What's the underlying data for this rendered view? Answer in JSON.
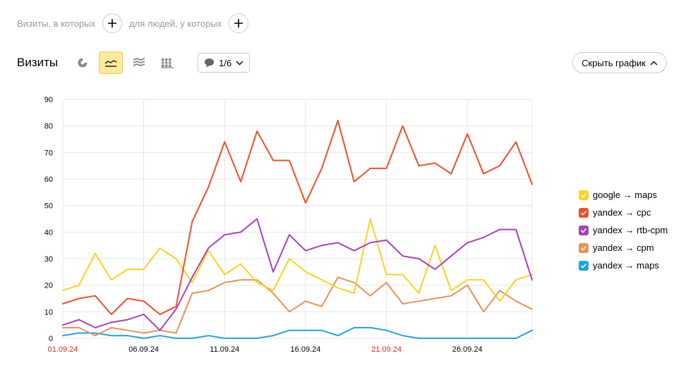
{
  "filters": {
    "visits_label": "Визиты, в которых",
    "people_label": "для людей, у которых"
  },
  "toolbar": {
    "title": "Визиты",
    "series_selector": "1/6",
    "hide_chart": "Скрыть график"
  },
  "colors": {
    "weekend_tick": "#e32b1c",
    "active_button": "#fde99a"
  },
  "chart_data": {
    "type": "line",
    "x": [
      "01.09.24",
      "02.09.24",
      "03.09.24",
      "04.09.24",
      "05.09.24",
      "06.09.24",
      "07.09.24",
      "08.09.24",
      "09.09.24",
      "10.09.24",
      "11.09.24",
      "12.09.24",
      "13.09.24",
      "14.09.24",
      "15.09.24",
      "16.09.24",
      "17.09.24",
      "18.09.24",
      "19.09.24",
      "20.09.24",
      "21.09.24",
      "22.09.24",
      "23.09.24",
      "24.09.24",
      "25.09.24",
      "26.09.24",
      "27.09.24",
      "28.09.24",
      "29.09.24",
      "30.09.24"
    ],
    "x_tick_labels": [
      {
        "label": "01.09.24",
        "index": 0,
        "weekend": true
      },
      {
        "label": "06.09.24",
        "index": 5,
        "weekend": false
      },
      {
        "label": "11.09.24",
        "index": 10,
        "weekend": false
      },
      {
        "label": "16.09.24",
        "index": 15,
        "weekend": false
      },
      {
        "label": "21.09.24",
        "index": 20,
        "weekend": true
      },
      {
        "label": "26.09.24",
        "index": 25,
        "weekend": false
      }
    ],
    "ylim": [
      0,
      90
    ],
    "y_ticks": [
      "0",
      "10",
      "20",
      "30",
      "40",
      "50",
      "60",
      "70",
      "80",
      "90"
    ],
    "grid": true,
    "legend_position": "right",
    "series": [
      {
        "name": "google → maps",
        "color": "#ffd21f",
        "values": [
          18,
          20,
          32,
          22,
          26,
          26,
          34,
          30,
          21,
          33,
          24,
          28,
          21,
          18,
          30,
          25,
          22,
          19,
          17,
          45,
          24,
          24,
          17,
          35,
          18,
          22,
          22,
          14,
          22,
          24
        ]
      },
      {
        "name": "yandex → cpc",
        "color": "#f24e2a",
        "values": [
          13,
          15,
          16,
          9,
          15,
          14,
          9,
          12,
          44,
          57,
          74,
          59,
          78,
          67,
          67,
          51,
          64,
          82,
          59,
          64,
          64,
          80,
          65,
          66,
          62,
          77,
          62,
          65,
          74,
          58
        ]
      },
      {
        "name": "yandex → rtb-cpm",
        "color": "#a842b8",
        "values": [
          5,
          7,
          4,
          6,
          7,
          9,
          3,
          11,
          23,
          34,
          39,
          40,
          45,
          25,
          39,
          33,
          35,
          36,
          33,
          36,
          37,
          31,
          30,
          26,
          31,
          36,
          38,
          41,
          41,
          22
        ]
      },
      {
        "name": "yandex → cpm",
        "color": "#e8915a",
        "values": [
          4,
          4,
          1,
          4,
          3,
          2,
          3,
          2,
          17,
          18,
          21,
          22,
          22,
          17,
          10,
          14,
          12,
          23,
          21,
          16,
          21,
          13,
          14,
          15,
          16,
          20,
          10,
          18,
          14,
          11
        ]
      },
      {
        "name": "yandex → maps",
        "color": "#1ba4e3",
        "values": [
          1,
          2,
          2,
          1,
          1,
          0,
          1,
          0,
          0,
          1,
          0,
          0,
          0,
          1,
          3,
          3,
          3,
          1,
          4,
          4,
          3,
          1,
          0,
          0,
          0,
          0,
          0,
          0,
          0,
          3
        ]
      }
    ]
  }
}
